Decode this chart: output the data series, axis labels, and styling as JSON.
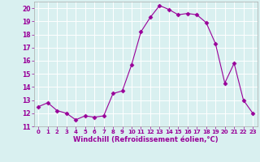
{
  "x": [
    0,
    1,
    2,
    3,
    4,
    5,
    6,
    7,
    8,
    9,
    10,
    11,
    12,
    13,
    14,
    15,
    16,
    17,
    18,
    19,
    20,
    21,
    22,
    23
  ],
  "y": [
    12.5,
    12.8,
    12.2,
    12.0,
    11.5,
    11.8,
    11.7,
    11.8,
    13.5,
    13.7,
    15.7,
    18.2,
    19.3,
    20.2,
    19.9,
    19.5,
    19.6,
    19.5,
    18.9,
    17.3,
    14.3,
    15.8,
    13.0,
    12.0
  ],
  "line_color": "#990099",
  "marker": "D",
  "marker_size": 2.5,
  "bg_color": "#d9f0f0",
  "grid_color": "#ffffff",
  "xlabel": "Windchill (Refroidissement éolien,°C)",
  "xlabel_color": "#990099",
  "tick_color": "#990099",
  "ylim": [
    11,
    20.5
  ],
  "xlim": [
    -0.5,
    23.5
  ],
  "yticks": [
    11,
    12,
    13,
    14,
    15,
    16,
    17,
    18,
    19,
    20
  ],
  "xticks": [
    0,
    1,
    2,
    3,
    4,
    5,
    6,
    7,
    8,
    9,
    10,
    11,
    12,
    13,
    14,
    15,
    16,
    17,
    18,
    19,
    20,
    21,
    22,
    23
  ]
}
